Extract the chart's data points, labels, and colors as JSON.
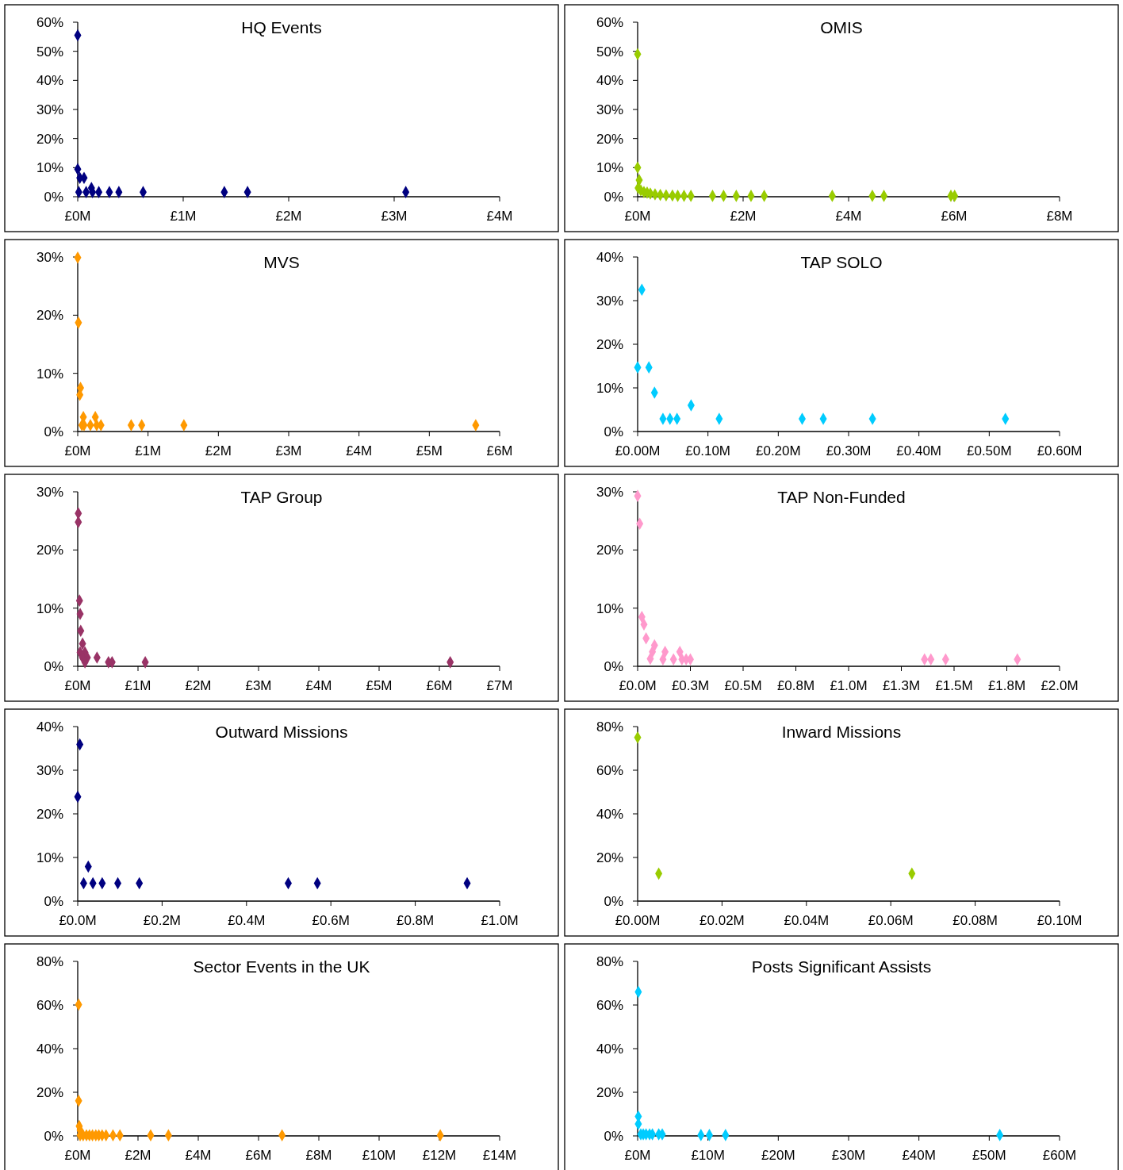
{
  "chart_data": [
    {
      "type": "scatter",
      "title": "HQ Events",
      "color": "#000080",
      "marker": "diamond",
      "x": [
        0,
        0,
        0.02,
        0.06,
        0.01,
        0.08,
        0.13,
        0.14,
        0.2,
        0.3,
        0.39,
        0.62,
        1.39,
        1.61,
        3.11
      ],
      "values": [
        55.5,
        9.5,
        6.5,
        6.5,
        1.6,
        1.6,
        3,
        1.6,
        1.6,
        1.6,
        1.6,
        1.6,
        1.6,
        1.6,
        1.6
      ],
      "xlim": [
        0,
        4
      ],
      "xticks": [
        {
          "value": 0,
          "label": "£0M"
        },
        {
          "value": 1,
          "label": "£1M"
        },
        {
          "value": 2,
          "label": "£2M"
        },
        {
          "value": 3,
          "label": "£3M"
        },
        {
          "value": 4,
          "label": "£4M"
        }
      ],
      "ylim": [
        0,
        60
      ],
      "yticks": [
        {
          "value": 0,
          "label": "0%"
        },
        {
          "value": 10,
          "label": "10%"
        },
        {
          "value": 20,
          "label": "20%"
        },
        {
          "value": 30,
          "label": "30%"
        },
        {
          "value": 40,
          "label": "40%"
        },
        {
          "value": 50,
          "label": "50%"
        },
        {
          "value": 60,
          "label": "60%"
        }
      ]
    },
    {
      "type": "scatter",
      "title": "OMIS",
      "color": "#99cc00",
      "marker": "diamond",
      "x": [
        0,
        0,
        0.03,
        0.01,
        0.06,
        0.12,
        0.18,
        0.24,
        0.33,
        0.43,
        0.54,
        0.66,
        0.76,
        0.88,
        1.01,
        1.42,
        1.63,
        1.87,
        2.15,
        2.4,
        3.69,
        4.45,
        4.67,
        5.94,
        6.01
      ],
      "values": [
        49,
        10,
        5.7,
        3,
        2.2,
        1.6,
        1.4,
        1.1,
        0.8,
        0.6,
        0.5,
        0.4,
        0.3,
        0.3,
        0.3,
        0.3,
        0.3,
        0.3,
        0.3,
        0.3,
        0.3,
        0.3,
        0.3,
        0.3,
        0.3
      ],
      "xlim": [
        0,
        8
      ],
      "xticks": [
        {
          "value": 0,
          "label": "£0M"
        },
        {
          "value": 2,
          "label": "£2M"
        },
        {
          "value": 4,
          "label": "£4M"
        },
        {
          "value": 6,
          "label": "£6M"
        },
        {
          "value": 8,
          "label": "£8M"
        }
      ],
      "ylim": [
        0,
        60
      ],
      "yticks": [
        {
          "value": 0,
          "label": "0%"
        },
        {
          "value": 10,
          "label": "10%"
        },
        {
          "value": 20,
          "label": "20%"
        },
        {
          "value": 30,
          "label": "30%"
        },
        {
          "value": 40,
          "label": "40%"
        },
        {
          "value": 50,
          "label": "50%"
        },
        {
          "value": 60,
          "label": "60%"
        }
      ]
    },
    {
      "type": "scatter",
      "title": "MVS",
      "color": "#ff9900",
      "marker": "diamond",
      "x": [
        0,
        0.01,
        0.04,
        0.03,
        0.08,
        0.25,
        0.06,
        0.09,
        0.18,
        0.27,
        0.33,
        0.76,
        0.91,
        1.51,
        5.66
      ],
      "values": [
        29.9,
        18.7,
        7.5,
        6.3,
        2.5,
        2.5,
        1.1,
        1.1,
        1.1,
        1.1,
        1.1,
        1.1,
        1.1,
        1.1,
        1.1
      ],
      "xlim": [
        0,
        6
      ],
      "xticks": [
        {
          "value": 0,
          "label": "£0M"
        },
        {
          "value": 1,
          "label": "£1M"
        },
        {
          "value": 2,
          "label": "£2M"
        },
        {
          "value": 3,
          "label": "£3M"
        },
        {
          "value": 4,
          "label": "£4M"
        },
        {
          "value": 5,
          "label": "£5M"
        },
        {
          "value": 6,
          "label": "£6M"
        }
      ],
      "ylim": [
        0,
        30
      ],
      "yticks": [
        {
          "value": 0,
          "label": "0%"
        },
        {
          "value": 10,
          "label": "10%"
        },
        {
          "value": 20,
          "label": "20%"
        },
        {
          "value": 30,
          "label": "30%"
        }
      ]
    },
    {
      "type": "scatter",
      "title": "TAP SOLO",
      "color": "#00ccff",
      "marker": "diamond",
      "x": [
        0.006,
        0,
        0.016,
        0.024,
        0.036,
        0.046,
        0.056,
        0.076,
        0.116,
        0.234,
        0.264,
        0.334,
        0.523
      ],
      "values": [
        32.5,
        14.7,
        14.7,
        8.9,
        2.9,
        2.9,
        2.9,
        6,
        2.9,
        2.9,
        2.9,
        2.9,
        2.9
      ],
      "xlim": [
        0,
        0.6
      ],
      "xticks": [
        {
          "value": 0,
          "label": "£0.00M"
        },
        {
          "value": 0.1,
          "label": "£0.10M"
        },
        {
          "value": 0.2,
          "label": "£0.20M"
        },
        {
          "value": 0.3,
          "label": "£0.30M"
        },
        {
          "value": 0.4,
          "label": "£0.40M"
        },
        {
          "value": 0.5,
          "label": "£0.50M"
        },
        {
          "value": 0.6,
          "label": "£0.60M"
        }
      ],
      "ylim": [
        0,
        40
      ],
      "yticks": [
        {
          "value": 0,
          "label": "0%"
        },
        {
          "value": 10,
          "label": "10%"
        },
        {
          "value": 20,
          "label": "20%"
        },
        {
          "value": 30,
          "label": "30%"
        },
        {
          "value": 40,
          "label": "40%"
        }
      ]
    },
    {
      "type": "scatter",
      "title": "TAP Group",
      "color": "#993366",
      "marker": "diamond",
      "x": [
        0.01,
        0.01,
        0.03,
        0.04,
        0.05,
        0.08,
        0.04,
        0.12,
        0.16,
        0.08,
        0.12,
        0.32,
        0.51,
        0.57,
        1.12,
        6.18
      ],
      "values": [
        26.3,
        24.8,
        11.3,
        9,
        6.1,
        3.9,
        2.4,
        2.4,
        1.5,
        1.5,
        0.7,
        1.5,
        0.7,
        0.7,
        0.7,
        0.7
      ],
      "xlim": [
        0,
        7
      ],
      "xticks": [
        {
          "value": 0,
          "label": "£0M"
        },
        {
          "value": 1,
          "label": "£1M"
        },
        {
          "value": 2,
          "label": "£2M"
        },
        {
          "value": 3,
          "label": "£3M"
        },
        {
          "value": 4,
          "label": "£4M"
        },
        {
          "value": 5,
          "label": "£5M"
        },
        {
          "value": 6,
          "label": "£6M"
        },
        {
          "value": 7,
          "label": "£7M"
        }
      ],
      "ylim": [
        0,
        30
      ],
      "yticks": [
        {
          "value": 0,
          "label": "0%"
        },
        {
          "value": 10,
          "label": "10%"
        },
        {
          "value": 20,
          "label": "20%"
        },
        {
          "value": 30,
          "label": "30%"
        }
      ]
    },
    {
      "type": "scatter",
      "title": "TAP Non-Funded",
      "color": "#ff99cc",
      "marker": "diamond",
      "x": [
        0,
        0.01,
        0.02,
        0.03,
        0.04,
        0.08,
        0.07,
        0.06,
        0.13,
        0.12,
        0.17,
        0.2,
        0.21,
        0.23,
        0.25,
        1.36,
        1.39,
        1.46,
        1.8
      ],
      "values": [
        29.3,
        24.5,
        8.5,
        7.2,
        4.8,
        3.6,
        2.5,
        1.3,
        2.5,
        1.2,
        1.2,
        2.5,
        1.2,
        1.2,
        1.2,
        1.2,
        1.2,
        1.2,
        1.2
      ],
      "xlim": [
        0,
        2
      ],
      "xticks": [
        {
          "value": 0,
          "label": "£0.0M"
        },
        {
          "value": 0.25,
          "label": "£0.3M"
        },
        {
          "value": 0.5,
          "label": "£0.5M"
        },
        {
          "value": 0.75,
          "label": "£0.8M"
        },
        {
          "value": 1,
          "label": "£1.0M"
        },
        {
          "value": 1.25,
          "label": "£1.3M"
        },
        {
          "value": 1.5,
          "label": "£1.5M"
        },
        {
          "value": 1.75,
          "label": "£1.8M"
        },
        {
          "value": 2,
          "label": "£2.0M"
        }
      ],
      "ylim": [
        0,
        30
      ],
      "yticks": [
        {
          "value": 0,
          "label": "0%"
        },
        {
          "value": 10,
          "label": "10%"
        },
        {
          "value": 20,
          "label": "20%"
        },
        {
          "value": 30,
          "label": "30%"
        }
      ]
    },
    {
      "type": "scatter",
      "title": "Outward Missions",
      "color": "#000080",
      "marker": "diamond",
      "x": [
        0.005,
        0,
        0.025,
        0.014,
        0.036,
        0.058,
        0.095,
        0.146,
        0.499,
        0.568,
        0.923
      ],
      "values": [
        35.9,
        23.9,
        7.9,
        4.1,
        4.1,
        4.1,
        4.1,
        4.1,
        4.1,
        4.1,
        4.1
      ],
      "xlim": [
        0,
        1
      ],
      "xticks": [
        {
          "value": 0,
          "label": "£0.0M"
        },
        {
          "value": 0.2,
          "label": "£0.2M"
        },
        {
          "value": 0.4,
          "label": "£0.4M"
        },
        {
          "value": 0.6,
          "label": "£0.6M"
        },
        {
          "value": 0.8,
          "label": "£0.8M"
        },
        {
          "value": 1,
          "label": "£1.0M"
        }
      ],
      "ylim": [
        0,
        40
      ],
      "yticks": [
        {
          "value": 0,
          "label": "0%"
        },
        {
          "value": 10,
          "label": "10%"
        },
        {
          "value": 20,
          "label": "20%"
        },
        {
          "value": 30,
          "label": "30%"
        },
        {
          "value": 40,
          "label": "40%"
        }
      ]
    },
    {
      "type": "scatter",
      "title": "Inward Missions",
      "color": "#99cc00",
      "marker": "diamond",
      "x": [
        0,
        0.005,
        0.065
      ],
      "values": [
        75,
        12.6,
        12.6
      ],
      "xlim": [
        0,
        0.1
      ],
      "xticks": [
        {
          "value": 0,
          "label": "£0.00M"
        },
        {
          "value": 0.02,
          "label": "£0.02M"
        },
        {
          "value": 0.04,
          "label": "£0.04M"
        },
        {
          "value": 0.06,
          "label": "£0.06M"
        },
        {
          "value": 0.08,
          "label": "£0.08M"
        },
        {
          "value": 0.1,
          "label": "£0.10M"
        }
      ],
      "ylim": [
        0,
        80
      ],
      "yticks": [
        {
          "value": 0,
          "label": "0%"
        },
        {
          "value": 20,
          "label": "20%"
        },
        {
          "value": 40,
          "label": "40%"
        },
        {
          "value": 60,
          "label": "60%"
        },
        {
          "value": 80,
          "label": "80%"
        }
      ]
    },
    {
      "type": "scatter",
      "title": "Sector Events in the UK",
      "color": "#ff9900",
      "marker": "diamond",
      "x": [
        0.03,
        0.03,
        0.05,
        0.08,
        0.08,
        0.18,
        0.29,
        0.39,
        0.49,
        0.6,
        0.7,
        0.81,
        0.94,
        1.17,
        1.4,
        2.42,
        3.01,
        6.78,
        12.03
      ],
      "values": [
        60.2,
        16.1,
        4.5,
        2.6,
        0.3,
        0.3,
        0.3,
        0.3,
        0.3,
        0.3,
        0.3,
        0.3,
        0.3,
        0.3,
        0.3,
        0.3,
        0.3,
        0.3,
        0.3
      ],
      "xlim": [
        0,
        14
      ],
      "xticks": [
        {
          "value": 0,
          "label": "£0M"
        },
        {
          "value": 2,
          "label": "£2M"
        },
        {
          "value": 4,
          "label": "£4M"
        },
        {
          "value": 6,
          "label": "£6M"
        },
        {
          "value": 8,
          "label": "£8M"
        },
        {
          "value": 10,
          "label": "£10M"
        },
        {
          "value": 12,
          "label": "£12M"
        },
        {
          "value": 14,
          "label": "£14M"
        }
      ],
      "ylim": [
        0,
        80
      ],
      "yticks": [
        {
          "value": 0,
          "label": "0%"
        },
        {
          "value": 20,
          "label": "20%"
        },
        {
          "value": 40,
          "label": "40%"
        },
        {
          "value": 60,
          "label": "60%"
        },
        {
          "value": 80,
          "label": "80%"
        }
      ]
    },
    {
      "type": "scatter",
      "title": "Posts Significant Assists",
      "color": "#00ccff",
      "marker": "diamond",
      "x": [
        0.1,
        0.1,
        0.1,
        0.45,
        0.8,
        1.2,
        1.7,
        2.1,
        3,
        3.5,
        9,
        10.2,
        12.5,
        51.5
      ],
      "values": [
        66,
        8.9,
        5.5,
        0.7,
        0.7,
        0.7,
        0.7,
        0.7,
        0.7,
        0.7,
        0.4,
        0.4,
        0.4,
        0.4
      ],
      "xlim": [
        0,
        60
      ],
      "xticks": [
        {
          "value": 0,
          "label": "£0M"
        },
        {
          "value": 10,
          "label": "£10M"
        },
        {
          "value": 20,
          "label": "£20M"
        },
        {
          "value": 30,
          "label": "£30M"
        },
        {
          "value": 40,
          "label": "£40M"
        },
        {
          "value": 50,
          "label": "£50M"
        },
        {
          "value": 60,
          "label": "£60M"
        }
      ],
      "ylim": [
        0,
        80
      ],
      "yticks": [
        {
          "value": 0,
          "label": "0%"
        },
        {
          "value": 20,
          "label": "20%"
        },
        {
          "value": 40,
          "label": "40%"
        },
        {
          "value": 60,
          "label": "60%"
        },
        {
          "value": 80,
          "label": "80%"
        }
      ]
    }
  ]
}
